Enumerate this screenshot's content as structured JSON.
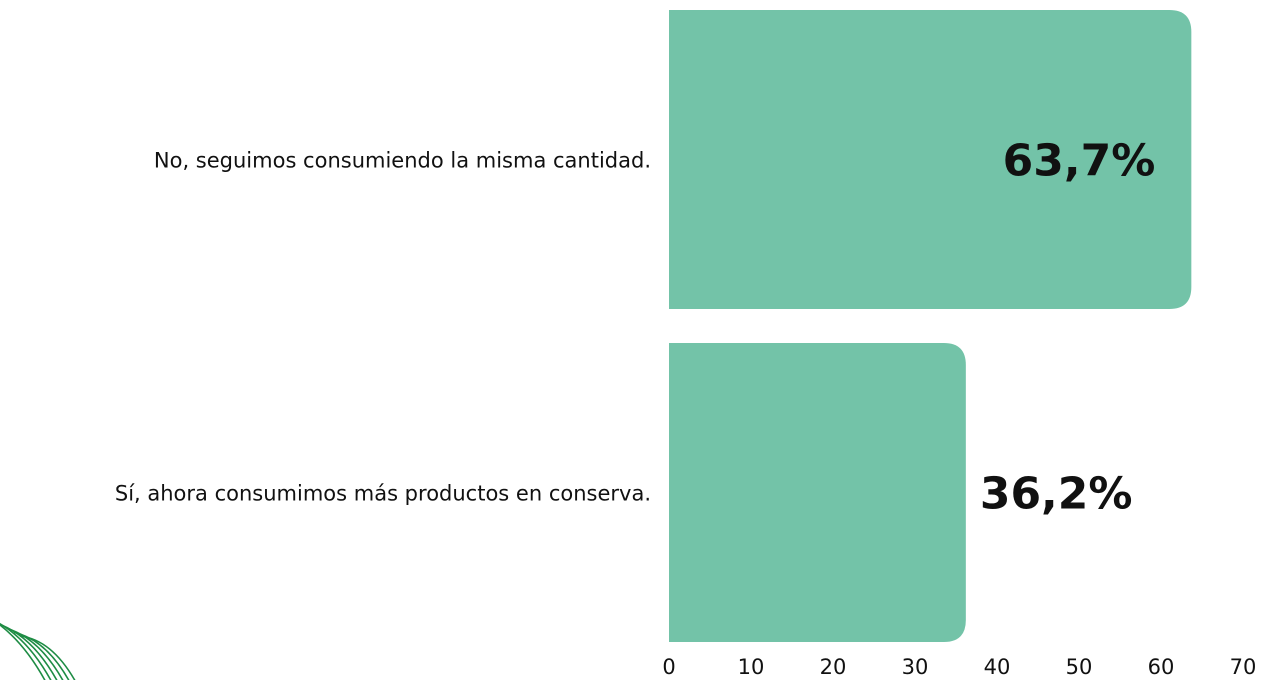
{
  "chart_data": {
    "type": "bar",
    "orientation": "horizontal",
    "categories": [
      "No, seguimos consumiendo la misma cantidad.",
      "Sí, ahora consumimos más productos en conserva."
    ],
    "values": [
      63.7,
      36.2
    ],
    "value_labels": [
      "63,7%",
      "36,2%"
    ],
    "title": "",
    "xlabel": "",
    "ylabel": "",
    "xlim": [
      0,
      70
    ],
    "x_ticks": [
      0,
      10,
      20,
      30,
      40,
      50,
      60,
      70
    ],
    "grid": false,
    "legend": "none",
    "bar_color": "#73C3A8",
    "accent_color": "#1E8C44"
  }
}
